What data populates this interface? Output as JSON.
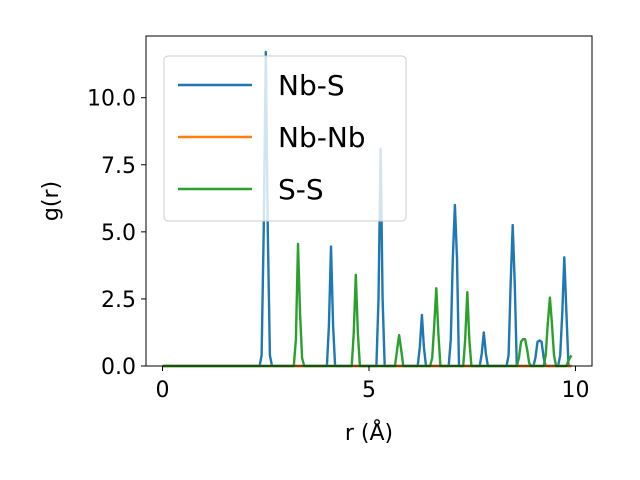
{
  "chart_data": {
    "type": "line",
    "xlabel": "r (Å)",
    "ylabel": "g(r)",
    "xlim": [
      -0.4,
      10.4
    ],
    "ylim": [
      0,
      12.3
    ],
    "x_ticks": [
      0,
      5,
      10
    ],
    "y_ticks": [
      0.0,
      2.5,
      5.0,
      7.5,
      10.0
    ],
    "x_tick_labels": [
      "0",
      "5",
      "10"
    ],
    "y_tick_labels": [
      "0.0",
      "2.5",
      "5.0",
      "7.5",
      "10.0"
    ],
    "grid": false,
    "legend_position": "top-left",
    "series": [
      {
        "name": "Nb-S",
        "color": "#1f77b4",
        "x": [
          0,
          2.35,
          2.4,
          2.45,
          2.5,
          2.55,
          2.6,
          2.65,
          3.98,
          4.03,
          4.08,
          4.13,
          4.18,
          5.18,
          5.23,
          5.28,
          5.33,
          5.38,
          6.18,
          6.23,
          6.28,
          6.33,
          6.38,
          6.93,
          6.98,
          7.03,
          7.08,
          7.13,
          7.18,
          7.68,
          7.73,
          7.78,
          7.83,
          7.88,
          8.33,
          8.38,
          8.43,
          8.48,
          8.53,
          8.58,
          8.98,
          9.03,
          9.08,
          9.13,
          9.18,
          9.23,
          9.28,
          9.58,
          9.63,
          9.68,
          9.73,
          9.78,
          9.83,
          9.9
        ],
        "y": [
          0,
          0,
          0.4,
          5.0,
          11.7,
          5.0,
          0.4,
          0,
          0,
          1.5,
          4.45,
          1.5,
          0,
          0,
          2.5,
          8.1,
          2.5,
          0,
          0,
          0.7,
          1.9,
          0.7,
          0,
          0,
          1.0,
          4.0,
          6.0,
          4.0,
          0,
          0,
          0.45,
          1.25,
          0.45,
          0,
          0,
          0.4,
          3.0,
          5.25,
          3.0,
          0,
          0,
          0.3,
          0.9,
          0.95,
          0.9,
          0.3,
          0,
          0,
          0.4,
          2.0,
          4.05,
          2.0,
          0,
          0
        ]
      },
      {
        "name": "Nb-Nb",
        "color": "#ff7f0e",
        "x": [
          0,
          9.9
        ],
        "y": [
          0,
          0
        ]
      },
      {
        "name": "S-S",
        "color": "#2ca02c",
        "x": [
          0,
          3.18,
          3.23,
          3.28,
          3.33,
          3.38,
          3.43,
          4.58,
          4.63,
          4.68,
          4.73,
          4.78,
          5.63,
          5.68,
          5.73,
          5.78,
          5.83,
          6.48,
          6.53,
          6.58,
          6.63,
          6.68,
          6.73,
          7.28,
          7.33,
          7.38,
          7.43,
          7.48,
          8.58,
          8.63,
          8.68,
          8.73,
          8.78,
          8.83,
          8.88,
          8.93,
          9.23,
          9.28,
          9.33,
          9.38,
          9.43,
          9.48,
          9.53,
          9.78,
          9.83,
          9.9
        ],
        "y": [
          0,
          0,
          1.0,
          4.55,
          2.0,
          0.3,
          0,
          0,
          1.2,
          3.4,
          1.2,
          0,
          0,
          0.6,
          1.15,
          0.6,
          0,
          0,
          0.3,
          1.5,
          2.9,
          1.2,
          0,
          0,
          1.0,
          2.75,
          1.0,
          0,
          0,
          0.3,
          0.9,
          1.0,
          1.0,
          0.6,
          0.1,
          0,
          0,
          0.4,
          1.6,
          2.55,
          1.6,
          0.4,
          0,
          0,
          0.2,
          0.4
        ]
      }
    ]
  }
}
